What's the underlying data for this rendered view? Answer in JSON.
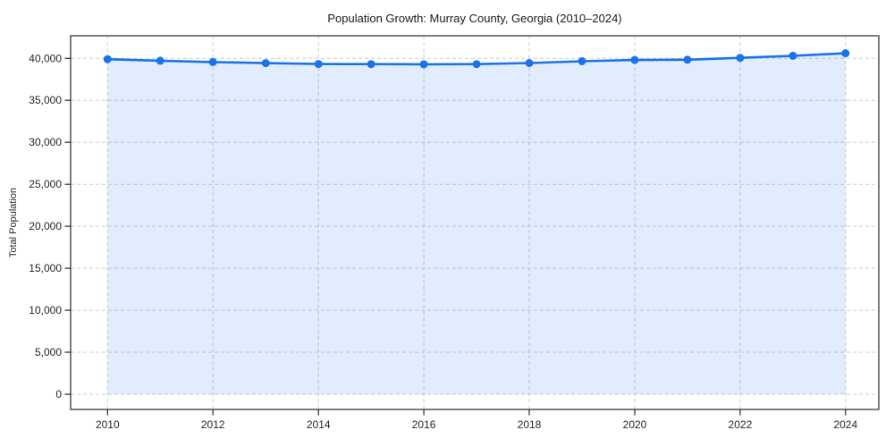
{
  "chart_data": {
    "type": "line",
    "title": "Population Growth: Murray County, Georgia (2010–2024)",
    "xlabel": "",
    "ylabel": "Total Population",
    "x": [
      2010,
      2011,
      2012,
      2013,
      2014,
      2015,
      2016,
      2017,
      2018,
      2019,
      2020,
      2021,
      2022,
      2023,
      2024
    ],
    "series": [
      {
        "name": "Total Population",
        "values": [
          39900,
          39720,
          39560,
          39430,
          39330,
          39310,
          39290,
          39310,
          39440,
          39660,
          39810,
          39840,
          40060,
          40310,
          40600
        ]
      }
    ],
    "x_ticks": {
      "values": [
        2010,
        2012,
        2014,
        2016,
        2018,
        2020,
        2022,
        2024
      ],
      "labels": [
        "2010",
        "2012",
        "2014",
        "2016",
        "2018",
        "2020",
        "2022",
        "2024"
      ]
    },
    "y_ticks": {
      "values": [
        0,
        5000,
        10000,
        15000,
        20000,
        25000,
        30000,
        35000,
        40000
      ],
      "labels": [
        "0",
        "5,000",
        "10,000",
        "15,000",
        "20,000",
        "25,000",
        "30,000",
        "35,000",
        "40,000"
      ]
    },
    "xlim": [
      2009.3,
      2024.63
    ],
    "ylim": [
      -1810,
      42690
    ],
    "area_baseline": 0,
    "grid": true,
    "grid_style": "dashed",
    "legend": false,
    "style": {
      "line_color": "#1a73e8",
      "marker_color": "#1a73e8",
      "fill_color": "rgba(26,115,232,0.13)",
      "grid_color": "#cdcdcd",
      "spine_color": "#262626",
      "tick_color": "#262626",
      "text_color": "#1a1a1a",
      "background": "#ffffff",
      "marker_radius": 4.5,
      "line_width": 2.6
    }
  }
}
